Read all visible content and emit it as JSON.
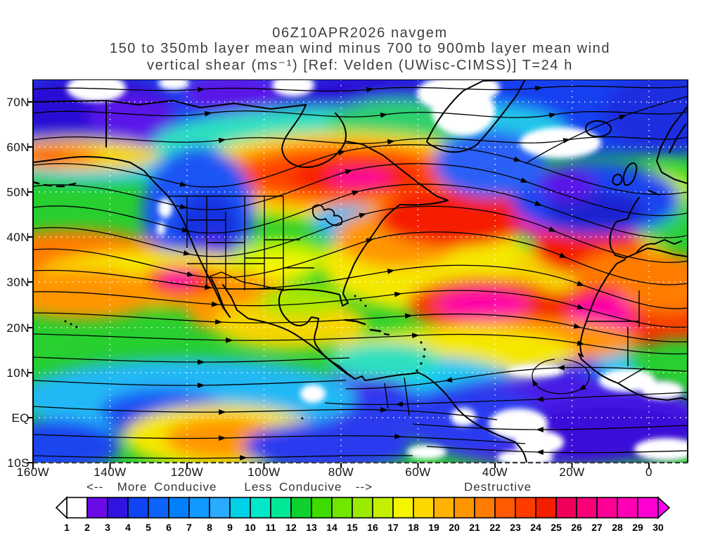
{
  "title": {
    "line1": "06Z10APR2026 navgem",
    "line2": "150 to 350mb layer mean wind minus 700 to 900mb layer mean wind",
    "line3": "vertical shear (ms⁻¹) [Ref: Velden (UWisc-CIMSS)] T=24 h"
  },
  "map": {
    "lat_labels": [
      "70N",
      "60N",
      "50N",
      "40N",
      "30N",
      "20N",
      "10N",
      "EQ",
      "10S"
    ],
    "lon_labels": [
      "160W",
      "140W",
      "120W",
      "100W",
      "80W",
      "60W",
      "40W",
      "20W",
      "0"
    ]
  },
  "legend": {
    "conducive_label": "<--  More Conducive    Less Conducive  -->",
    "destructive_label": "Destructive"
  },
  "colorbar": {
    "numbers": [
      "1",
      "2",
      "3",
      "4",
      "5",
      "6",
      "7",
      "8",
      "9",
      "10",
      "11",
      "12",
      "13",
      "14",
      "15",
      "16",
      "17",
      "18",
      "19",
      "20",
      "21",
      "22",
      "23",
      "24",
      "25",
      "26",
      "27",
      "28",
      "29",
      "30"
    ],
    "cell_colors": [
      "#FFFFFF",
      "#6A0BE8",
      "#3214E0",
      "#0F45F5",
      "#0D63FB",
      "#0080FF",
      "#1199FF",
      "#29ABFF",
      "#00D0E8",
      "#00E8C8",
      "#00E896",
      "#0ED12E",
      "#3FDC00",
      "#71E600",
      "#9BEB00",
      "#C3F000",
      "#F5F500",
      "#FFD700",
      "#FFB300",
      "#FF9600",
      "#FF7C00",
      "#FF5A00",
      "#FF3C00",
      "#F51E00",
      "#F0005A",
      "#FA0078",
      "#FF0096",
      "#FF00B4",
      "#FF00D2"
    ],
    "arrow_left_color": "#FFFFFF",
    "arrow_right_color": "#FF00F0"
  }
}
